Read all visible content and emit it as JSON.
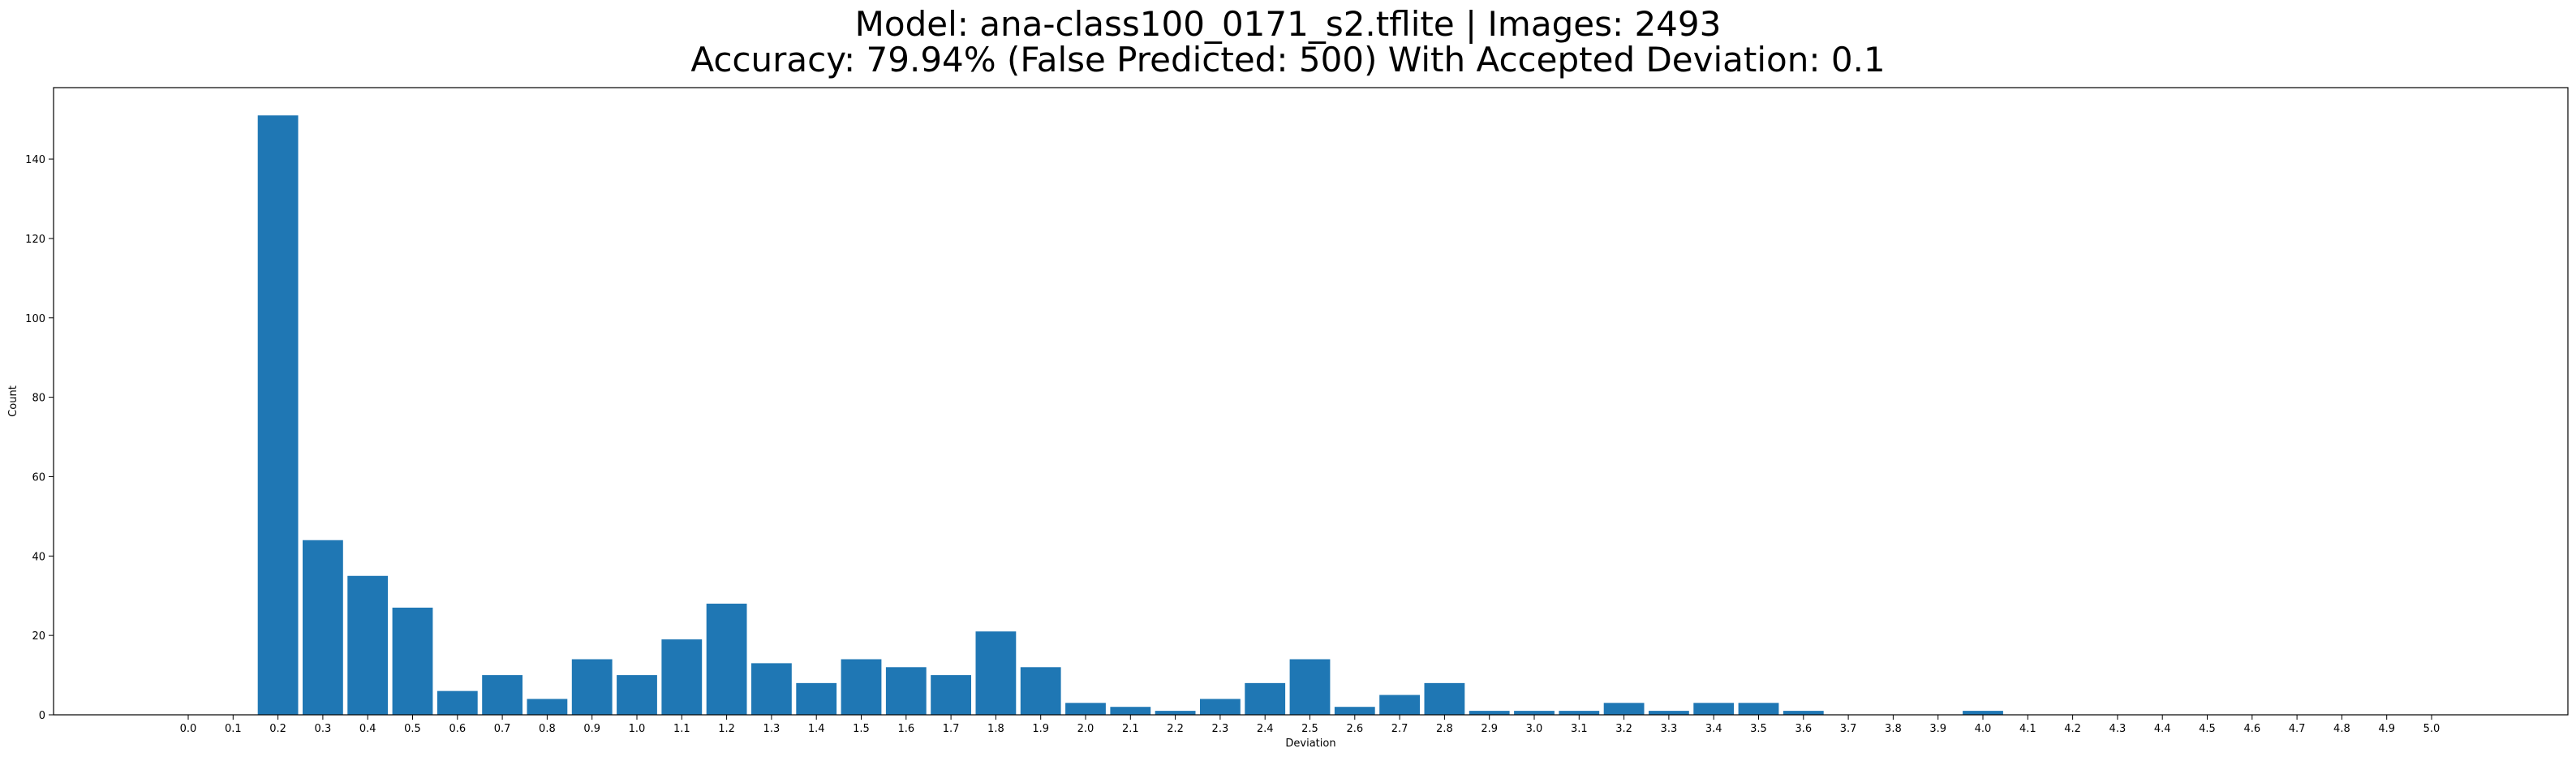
{
  "chart_data": {
    "type": "bar",
    "title": "Model: ana-class100_0171_s2.tflite  |  Images: 2493",
    "subtitle": "Accuracy: 79.94% (False Predicted: 500) With Accepted Deviation: 0.1",
    "xlabel": "Deviation",
    "ylabel": "Count",
    "ylim": [
      0,
      158
    ],
    "yticks": [
      0,
      20,
      40,
      60,
      80,
      100,
      120,
      140
    ],
    "categories": [
      "0.0",
      "0.1",
      "0.2",
      "0.3",
      "0.4",
      "0.5",
      "0.6",
      "0.7",
      "0.8",
      "0.9",
      "1.0",
      "1.1",
      "1.2",
      "1.3",
      "1.4",
      "1.5",
      "1.6",
      "1.7",
      "1.8",
      "1.9",
      "2.0",
      "2.1",
      "2.2",
      "2.3",
      "2.4",
      "2.5",
      "2.6",
      "2.7",
      "2.8",
      "2.9",
      "3.0",
      "3.1",
      "3.2",
      "3.3",
      "3.4",
      "3.5",
      "3.6",
      "3.7",
      "3.8",
      "3.9",
      "4.0",
      "4.1",
      "4.2",
      "4.3",
      "4.4",
      "4.5",
      "4.6",
      "4.7",
      "4.8",
      "4.9",
      "5.0"
    ],
    "values": [
      0,
      0,
      151,
      44,
      35,
      27,
      6,
      10,
      4,
      14,
      10,
      19,
      28,
      13,
      8,
      14,
      12,
      10,
      21,
      12,
      3,
      2,
      1,
      4,
      8,
      14,
      2,
      5,
      8,
      1,
      1,
      1,
      3,
      1,
      3,
      3,
      1,
      0,
      0,
      0,
      1,
      0,
      0,
      0,
      0,
      0,
      0,
      0,
      0,
      0,
      0
    ],
    "color": "#1f77b4",
    "grid": false,
    "legend": "none"
  }
}
